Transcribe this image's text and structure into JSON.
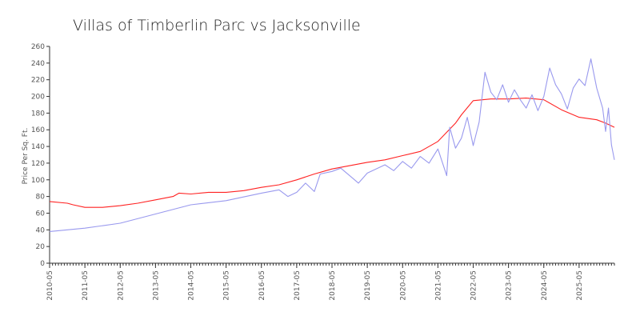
{
  "chart_data": {
    "type": "line",
    "title": "Villas of Timberlin Parc vs Jacksonville",
    "xlabel": "",
    "ylabel": "Price Per Sq. Ft.",
    "ylim": [
      0,
      260
    ],
    "yticks": [
      0,
      20,
      40,
      60,
      80,
      100,
      120,
      140,
      160,
      180,
      200,
      220,
      240,
      260
    ],
    "xlim": [
      "2010-05",
      "2026-05"
    ],
    "xtick_labels": [
      "2010-05",
      "2011-05",
      "2012-05",
      "2013-05",
      "2014-05",
      "2015-05",
      "2016-05",
      "2017-05",
      "2018-05",
      "2019-05",
      "2020-05",
      "2021-05",
      "2022-05",
      "2023-05",
      "2024-05",
      "2025-05"
    ],
    "grid": false,
    "legend": "none",
    "series": [
      {
        "color": "#ff2222",
        "points": [
          [
            "2010-05",
            74
          ],
          [
            "2010-11",
            72
          ],
          [
            "2011-01",
            70
          ],
          [
            "2011-05",
            67
          ],
          [
            "2011-11",
            67
          ],
          [
            "2012-05",
            69
          ],
          [
            "2012-11",
            72
          ],
          [
            "2013-05",
            76
          ],
          [
            "2013-11",
            80
          ],
          [
            "2014-01",
            84
          ],
          [
            "2014-05",
            83
          ],
          [
            "2014-11",
            85
          ],
          [
            "2015-05",
            85
          ],
          [
            "2015-11",
            87
          ],
          [
            "2016-05",
            91
          ],
          [
            "2016-11",
            94
          ],
          [
            "2017-05",
            100
          ],
          [
            "2017-11",
            107
          ],
          [
            "2018-05",
            113
          ],
          [
            "2018-11",
            117
          ],
          [
            "2019-05",
            121
          ],
          [
            "2019-11",
            124
          ],
          [
            "2020-05",
            129
          ],
          [
            "2020-11",
            134
          ],
          [
            "2021-05",
            146
          ],
          [
            "2021-11",
            168
          ],
          [
            "2022-01",
            178
          ],
          [
            "2022-05",
            195
          ],
          [
            "2022-11",
            197
          ],
          [
            "2023-05",
            197
          ],
          [
            "2023-11",
            198
          ],
          [
            "2024-05",
            196
          ],
          [
            "2024-11",
            184
          ],
          [
            "2025-05",
            175
          ],
          [
            "2025-11",
            172
          ],
          [
            "2026-02",
            168
          ],
          [
            "2026-05",
            163
          ]
        ]
      },
      {
        "color": "#9999ee",
        "points": [
          [
            "2010-05",
            38
          ],
          [
            "2011-05",
            42
          ],
          [
            "2012-05",
            48
          ],
          [
            "2013-05",
            59
          ],
          [
            "2014-05",
            70
          ],
          [
            "2015-05",
            75
          ],
          [
            "2016-05",
            84
          ],
          [
            "2016-11",
            88
          ],
          [
            "2017-02",
            80
          ],
          [
            "2017-05",
            85
          ],
          [
            "2017-08",
            96
          ],
          [
            "2017-11",
            86
          ],
          [
            "2018-01",
            107
          ],
          [
            "2018-05",
            110
          ],
          [
            "2018-08",
            114
          ],
          [
            "2018-11",
            105
          ],
          [
            "2019-02",
            96
          ],
          [
            "2019-05",
            108
          ],
          [
            "2019-11",
            118
          ],
          [
            "2020-02",
            111
          ],
          [
            "2020-05",
            122
          ],
          [
            "2020-08",
            114
          ],
          [
            "2020-11",
            128
          ],
          [
            "2021-02",
            120
          ],
          [
            "2021-05",
            137
          ],
          [
            "2021-08",
            105
          ],
          [
            "2021-09",
            163
          ],
          [
            "2021-11",
            138
          ],
          [
            "2022-01",
            150
          ],
          [
            "2022-03",
            175
          ],
          [
            "2022-05",
            141
          ],
          [
            "2022-07",
            169
          ],
          [
            "2022-09",
            229
          ],
          [
            "2022-11",
            205
          ],
          [
            "2023-01",
            196
          ],
          [
            "2023-03",
            214
          ],
          [
            "2023-05",
            193
          ],
          [
            "2023-07",
            208
          ],
          [
            "2023-09",
            196
          ],
          [
            "2023-11",
            186
          ],
          [
            "2024-01",
            202
          ],
          [
            "2024-03",
            183
          ],
          [
            "2024-05",
            200
          ],
          [
            "2024-07",
            234
          ],
          [
            "2024-09",
            214
          ],
          [
            "2024-11",
            203
          ],
          [
            "2025-01",
            185
          ],
          [
            "2025-03",
            210
          ],
          [
            "2025-05",
            221
          ],
          [
            "2025-07",
            213
          ],
          [
            "2025-09",
            245
          ],
          [
            "2025-11",
            210
          ],
          [
            "2026-01",
            186
          ],
          [
            "2026-02",
            158
          ],
          [
            "2026-03",
            186
          ],
          [
            "2026-04",
            142
          ],
          [
            "2026-05",
            124
          ]
        ]
      }
    ]
  }
}
